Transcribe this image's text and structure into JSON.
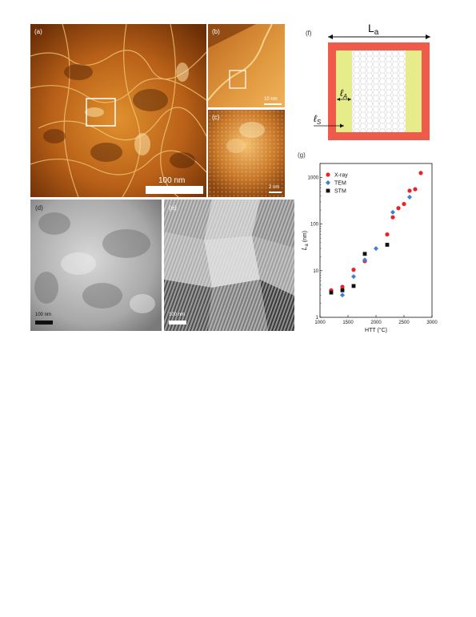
{
  "panels": {
    "a": {
      "label": "(a)",
      "scale": "100 nm"
    },
    "b": {
      "label": "(b)",
      "scale": "10 nm"
    },
    "c": {
      "label": "(c)",
      "scale": "2 nm"
    },
    "d": {
      "label": "(d)",
      "scale": "100 nm"
    },
    "e": {
      "label": "(e)",
      "scale": "100 nm"
    },
    "f": {
      "label": "(f)",
      "La": "L",
      "La_sub": "a",
      "lA": "ℓ",
      "lA_sub": "A",
      "lS": "ℓ",
      "lS_sub": "S"
    },
    "g": {
      "label": "(g)"
    }
  },
  "colors": {
    "xray": "#e8232a",
    "tem": "#3f7fd8",
    "stm": "#111111",
    "frame": "#f05a4a",
    "band": "#e6ec8a"
  },
  "chart_data": {
    "type": "scatter",
    "xlabel": "HTT (°C)",
    "ylabel": "L",
    "ylabel_sub": "a",
    "ylabel_unit": "(nm)",
    "xlim": [
      1000,
      3000
    ],
    "ylim": [
      1,
      2000
    ],
    "y_scale": "log",
    "x_ticks": [
      "1000",
      "1500",
      "2000",
      "2500",
      "3000"
    ],
    "y_ticks": [
      "1",
      "10",
      "100",
      "1000"
    ],
    "legend": "top-left",
    "series": [
      {
        "name": "X-ray",
        "marker": "circle",
        "points": [
          [
            1200,
            3.8
          ],
          [
            1400,
            4.5
          ],
          [
            1600,
            10.5
          ],
          [
            1800,
            16
          ],
          [
            2200,
            60
          ],
          [
            2300,
            140
          ],
          [
            2400,
            220
          ],
          [
            2500,
            270
          ],
          [
            2600,
            520
          ],
          [
            2700,
            560
          ],
          [
            2800,
            1250
          ]
        ]
      },
      {
        "name": "TEM",
        "marker": "diamond",
        "points": [
          [
            1400,
            3.0
          ],
          [
            1600,
            7.5
          ],
          [
            1800,
            17
          ],
          [
            2000,
            30
          ],
          [
            2300,
            180
          ],
          [
            2600,
            380
          ]
        ]
      },
      {
        "name": "STM",
        "marker": "square",
        "points": [
          [
            1200,
            3.4
          ],
          [
            1400,
            3.8
          ],
          [
            1600,
            4.7
          ],
          [
            1800,
            23
          ],
          [
            2200,
            36
          ]
        ]
      }
    ]
  }
}
